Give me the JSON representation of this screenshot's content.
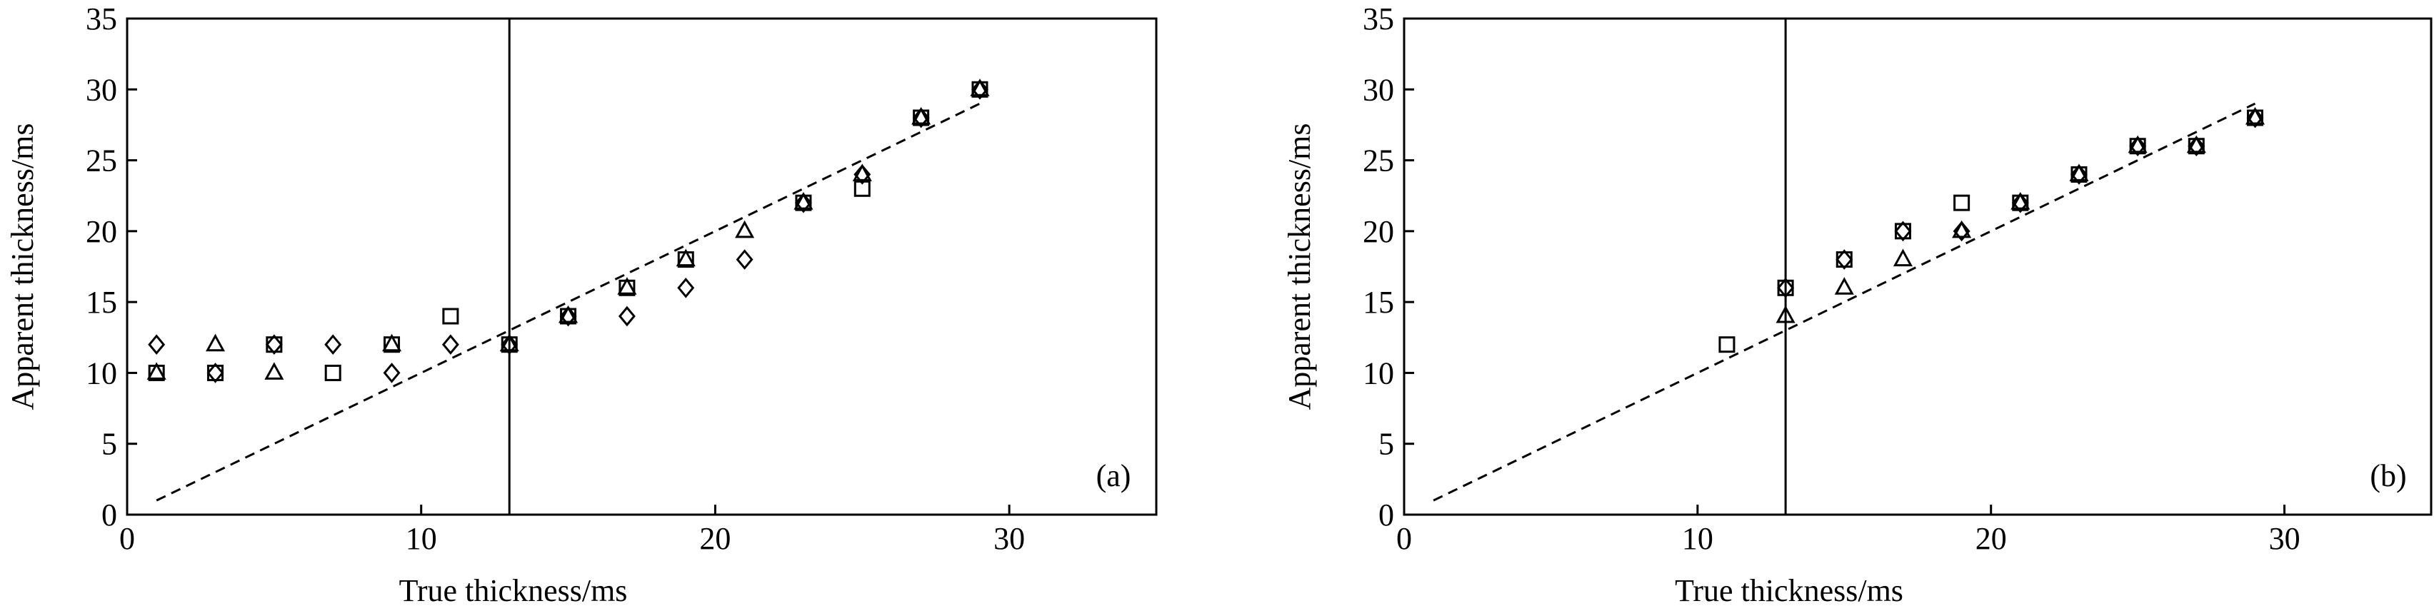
{
  "chart_data": [
    {
      "type": "scatter",
      "panel_label": "(a)",
      "xlabel": "True thickness/ms",
      "ylabel": "Apparent thickness/ms",
      "xlim": [
        0,
        35
      ],
      "ylim": [
        0,
        35
      ],
      "xticks": [
        0,
        10,
        20,
        30
      ],
      "yticks": [
        0,
        5,
        10,
        15,
        20,
        25,
        30,
        35
      ],
      "vline": 13,
      "ref_line": {
        "x": [
          1,
          29
        ],
        "y": [
          1,
          29
        ]
      },
      "series": [
        {
          "marker": "square",
          "color": "#000000",
          "x": [
            1,
            3,
            5,
            7,
            9,
            11,
            13,
            15,
            17,
            19,
            23,
            25,
            27,
            29
          ],
          "values": [
            10,
            10,
            12,
            10,
            12,
            14,
            12,
            14,
            16,
            18,
            22,
            23,
            28,
            30
          ]
        },
        {
          "marker": "triangle",
          "color": "#000000",
          "x": [
            1,
            3,
            5,
            9,
            13,
            15,
            17,
            19,
            21,
            23,
            25,
            27,
            29
          ],
          "values": [
            10,
            12,
            10,
            12,
            12,
            14,
            16,
            18,
            20,
            22,
            24,
            28,
            30
          ]
        },
        {
          "marker": "diamond",
          "color": "#000000",
          "x": [
            1,
            3,
            5,
            7,
            9,
            11,
            13,
            15,
            17,
            19,
            21,
            23,
            25,
            27,
            29
          ],
          "values": [
            12,
            10,
            12,
            12,
            10,
            12,
            12,
            14,
            14,
            16,
            18,
            22,
            24,
            28,
            30
          ]
        }
      ]
    },
    {
      "type": "scatter",
      "panel_label": "(b)",
      "xlabel": "True thickness/ms",
      "ylabel": "Apparent thickness/ms",
      "xlim": [
        0,
        35
      ],
      "ylim": [
        0,
        35
      ],
      "xticks": [
        0,
        10,
        20,
        30
      ],
      "yticks": [
        0,
        5,
        10,
        15,
        20,
        25,
        30,
        35
      ],
      "vline": 13,
      "ref_line": {
        "x": [
          1,
          29
        ],
        "y": [
          1,
          29
        ]
      },
      "series": [
        {
          "marker": "square",
          "color": "#000000",
          "x": [
            11,
            13,
            15,
            17,
            19,
            21,
            23,
            25,
            27,
            29
          ],
          "values": [
            12,
            16,
            18,
            20,
            22,
            22,
            24,
            26,
            26,
            28
          ]
        },
        {
          "marker": "triangle",
          "color": "#000000",
          "x": [
            13,
            15,
            17,
            19,
            21,
            23,
            25,
            27,
            29
          ],
          "values": [
            14,
            16,
            18,
            20,
            22,
            24,
            26,
            26,
            28
          ]
        },
        {
          "marker": "diamond",
          "color": "#000000",
          "x": [
            13,
            15,
            17,
            19,
            21,
            23,
            25,
            27,
            29
          ],
          "values": [
            16,
            18,
            20,
            20,
            22,
            24,
            26,
            26,
            28
          ]
        }
      ]
    }
  ]
}
